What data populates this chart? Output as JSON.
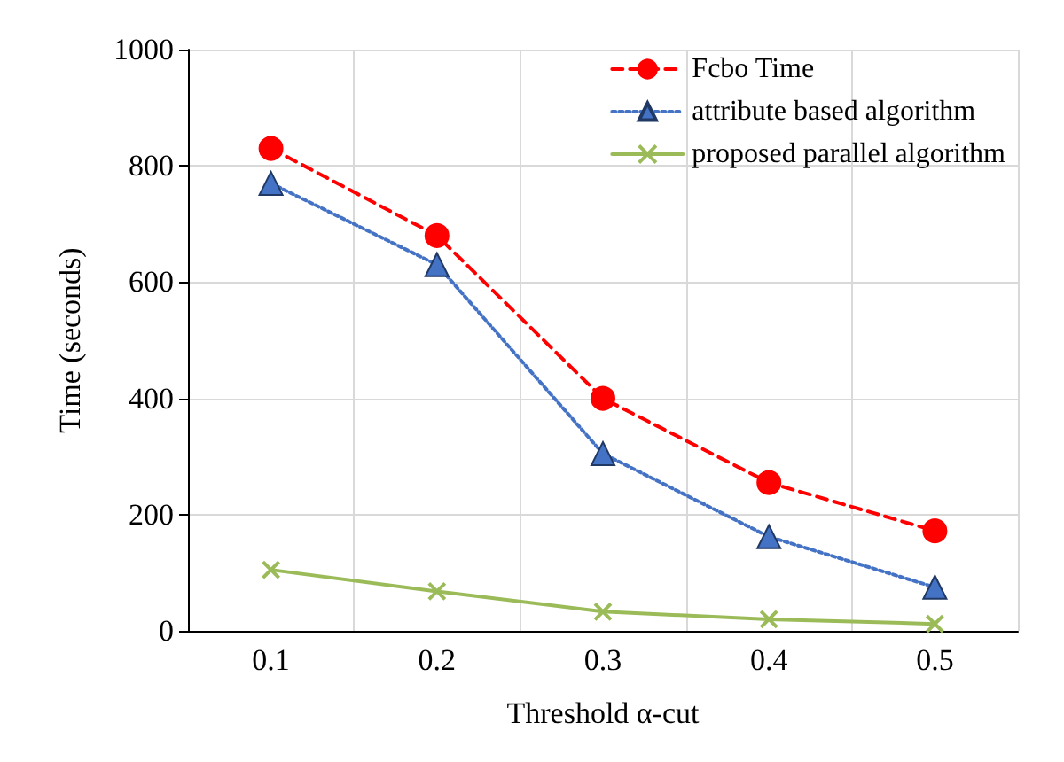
{
  "chart_data": {
    "type": "line",
    "xlabel": "Threshold α-cut",
    "ylabel": "Time (seconds)",
    "categories": [
      "0.1",
      "0.2",
      "0.3",
      "0.4",
      "0.5"
    ],
    "series": [
      {
        "name": "Fcbo Time",
        "color": "#ff0000",
        "values": [
          830,
          680,
          400,
          255,
          172
        ],
        "marker": "circle",
        "line_style": "dashed"
      },
      {
        "name": "attribute based algorithm",
        "color": "#4472c4",
        "values": [
          770,
          630,
          305,
          162,
          75
        ],
        "marker": "triangle",
        "line_style": "dotted"
      },
      {
        "name": "proposed parallel algorithm",
        "color": "#9bbb59",
        "values": [
          105,
          68,
          33,
          20,
          12
        ],
        "marker": "cross",
        "line_style": "solid"
      }
    ],
    "ylim": [
      0,
      1000
    ],
    "yticks": [
      0,
      200,
      400,
      600,
      800,
      1000
    ],
    "grid": true,
    "legend": "top right"
  }
}
